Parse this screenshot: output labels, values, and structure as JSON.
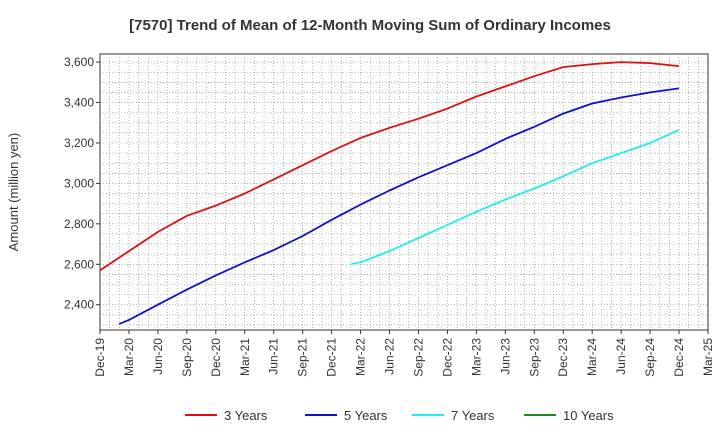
{
  "chart_data": {
    "type": "line",
    "title": "[7570]  Trend of Mean of 12-Month Moving Sum of Ordinary Incomes",
    "ylabel": "Amount (million yen)",
    "xlabel": "",
    "x_ticks": [
      "Dec-19",
      "Mar-20",
      "Jun-20",
      "Sep-20",
      "Dec-20",
      "Mar-21",
      "Jun-21",
      "Sep-21",
      "Dec-21",
      "Mar-22",
      "Jun-22",
      "Sep-22",
      "Dec-22",
      "Mar-23",
      "Jun-23",
      "Sep-23",
      "Dec-23",
      "Mar-24",
      "Jun-24",
      "Sep-24",
      "Dec-24",
      "Mar-25"
    ],
    "y_ticks": [
      2400,
      2600,
      2800,
      3000,
      3200,
      3400,
      3600
    ],
    "y_tick_labels": [
      "2,400",
      "2,600",
      "2,800",
      "3,000",
      "3,200",
      "3,400",
      "3,600"
    ],
    "ylim": [
      2275,
      3640
    ],
    "grid": true,
    "legend_position": "bottom",
    "series": [
      {
        "name": "3 Years",
        "color": "#dd1111",
        "points": [
          [
            "Dec-19",
            2570
          ],
          [
            "Mar-20",
            2665
          ],
          [
            "Jun-20",
            2760
          ],
          [
            "Sep-20",
            2840
          ],
          [
            "Dec-20",
            2890
          ],
          [
            "Mar-21",
            2950
          ],
          [
            "Jun-21",
            3020
          ],
          [
            "Sep-21",
            3090
          ],
          [
            "Dec-21",
            3160
          ],
          [
            "Mar-22",
            3225
          ],
          [
            "Jun-22",
            3275
          ],
          [
            "Sep-22",
            3320
          ],
          [
            "Dec-22",
            3370
          ],
          [
            "Mar-23",
            3430
          ],
          [
            "Jun-23",
            3480
          ],
          [
            "Sep-23",
            3530
          ],
          [
            "Dec-23",
            3575
          ],
          [
            "Mar-24",
            3590
          ],
          [
            "Jun-24",
            3600
          ],
          [
            "Sep-24",
            3595
          ],
          [
            "Dec-24",
            3580
          ]
        ]
      },
      {
        "name": "5 Years",
        "color": "#1111cc",
        "points": [
          [
            "Feb-20",
            2305
          ],
          [
            "Mar-20",
            2325
          ],
          [
            "Jun-20",
            2400
          ],
          [
            "Sep-20",
            2475
          ],
          [
            "Dec-20",
            2545
          ],
          [
            "Mar-21",
            2610
          ],
          [
            "Jun-21",
            2670
          ],
          [
            "Sep-21",
            2740
          ],
          [
            "Dec-21",
            2820
          ],
          [
            "Mar-22",
            2895
          ],
          [
            "Jun-22",
            2965
          ],
          [
            "Sep-22",
            3030
          ],
          [
            "Dec-22",
            3090
          ],
          [
            "Mar-23",
            3150
          ],
          [
            "Jun-23",
            3220
          ],
          [
            "Sep-23",
            3280
          ],
          [
            "Dec-23",
            3345
          ],
          [
            "Mar-24",
            3395
          ],
          [
            "Jun-24",
            3425
          ],
          [
            "Sep-24",
            3450
          ],
          [
            "Dec-24",
            3470
          ]
        ]
      },
      {
        "name": "7 Years",
        "color": "#22eeee",
        "points": [
          [
            "Feb-22",
            2600
          ],
          [
            "Mar-22",
            2610
          ],
          [
            "Jun-22",
            2665
          ],
          [
            "Sep-22",
            2730
          ],
          [
            "Dec-22",
            2795
          ],
          [
            "Mar-23",
            2860
          ],
          [
            "Jun-23",
            2920
          ],
          [
            "Sep-23",
            2975
          ],
          [
            "Dec-23",
            3035
          ],
          [
            "Mar-24",
            3100
          ],
          [
            "Jun-24",
            3150
          ],
          [
            "Sep-24",
            3200
          ],
          [
            "Dec-24",
            3265
          ]
        ]
      },
      {
        "name": "10 Years",
        "color": "#228822",
        "points": []
      }
    ]
  }
}
